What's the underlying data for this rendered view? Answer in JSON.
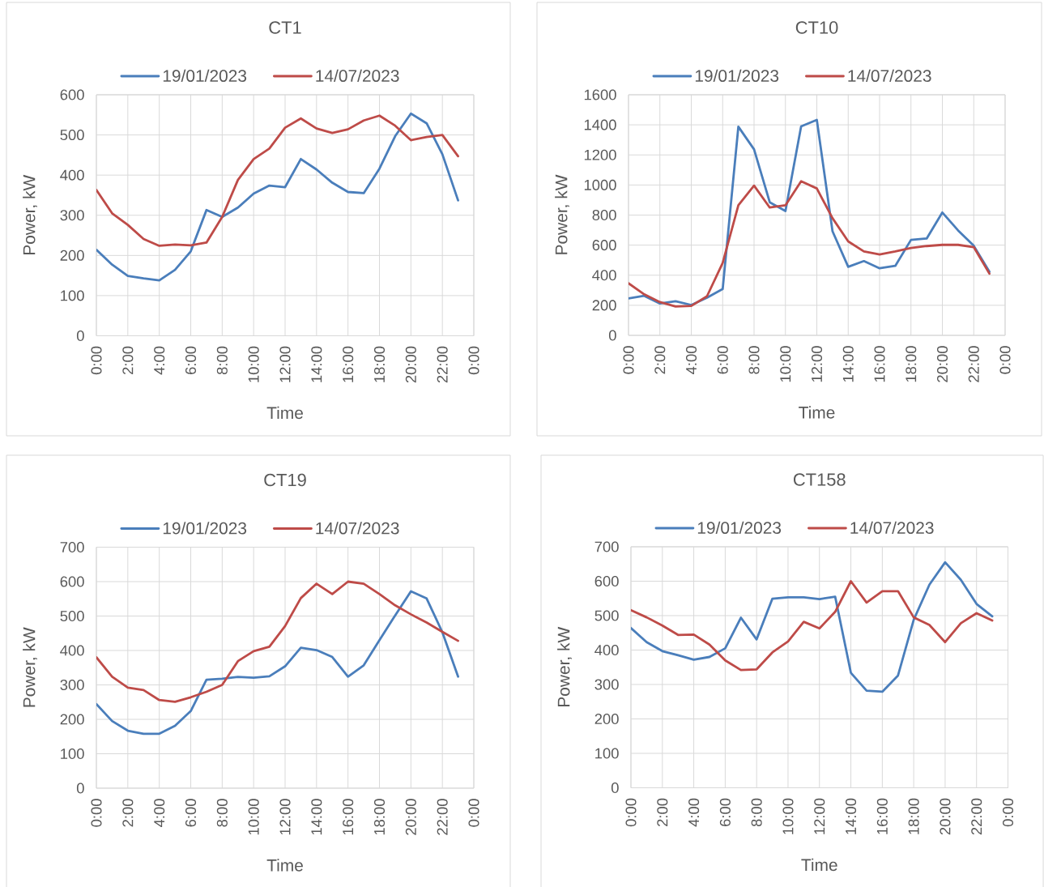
{
  "chart_data": [
    {
      "type": "line",
      "title": "CT1",
      "xlabel": "Time",
      "ylabel": "Power, kW",
      "x": [
        0,
        1,
        2,
        3,
        4,
        5,
        6,
        7,
        8,
        9,
        10,
        11,
        12,
        13,
        14,
        15,
        16,
        17,
        18,
        19,
        20,
        21,
        22,
        23
      ],
      "series": [
        {
          "name": "19/01/2023",
          "color": "#4a7ebb",
          "values": [
            214,
            177,
            149,
            143,
            138,
            164,
            210,
            313,
            296,
            319,
            354,
            374,
            370,
            440,
            414,
            381,
            358,
            355,
            416,
            497,
            553,
            529,
            452,
            337
          ]
        },
        {
          "name": "14/07/2023",
          "color": "#be4b48",
          "values": [
            363,
            305,
            276,
            241,
            224,
            227,
            225,
            232,
            296,
            388,
            440,
            466,
            518,
            541,
            516,
            505,
            514,
            536,
            548,
            523,
            487,
            495,
            500,
            447
          ]
        }
      ],
      "xlim": [
        0,
        24
      ],
      "xticks": [
        {
          "value": 0,
          "label": "0:00"
        },
        {
          "value": 2,
          "label": "2:00"
        },
        {
          "value": 4,
          "label": "4:00"
        },
        {
          "value": 6,
          "label": "6:00"
        },
        {
          "value": 8,
          "label": "8:00"
        },
        {
          "value": 10,
          "label": "10:00"
        },
        {
          "value": 12,
          "label": "12:00"
        },
        {
          "value": 14,
          "label": "14:00"
        },
        {
          "value": 16,
          "label": "16:00"
        },
        {
          "value": 18,
          "label": "18:00"
        },
        {
          "value": 20,
          "label": "20:00"
        },
        {
          "value": 22,
          "label": "22:00"
        },
        {
          "value": 24,
          "label": "0:00"
        }
      ],
      "ylim": [
        0,
        600
      ],
      "yticks": [
        0,
        100,
        200,
        300,
        400,
        500,
        600
      ],
      "grid": true,
      "legend": "top",
      "marker": "none",
      "line_style": "solid"
    },
    {
      "type": "line",
      "title": "CT10",
      "xlabel": "Time",
      "ylabel": "Power, kW",
      "x": [
        0,
        1,
        2,
        3,
        4,
        5,
        6,
        7,
        8,
        9,
        10,
        11,
        12,
        13,
        14,
        15,
        16,
        17,
        18,
        19,
        20,
        21,
        22,
        23
      ],
      "series": [
        {
          "name": "19/01/2023",
          "color": "#4a7ebb",
          "values": [
            246,
            263,
            212,
            227,
            202,
            250,
            308,
            1388,
            1237,
            885,
            827,
            1390,
            1433,
            692,
            456,
            494,
            446,
            462,
            635,
            644,
            817,
            698,
            596,
            423
          ]
        },
        {
          "name": "14/07/2023",
          "color": "#be4b48",
          "values": [
            346,
            273,
            221,
            192,
            196,
            260,
            481,
            865,
            996,
            850,
            865,
            1025,
            977,
            779,
            625,
            558,
            538,
            558,
            581,
            594,
            602,
            602,
            587,
            410
          ]
        }
      ],
      "xlim": [
        0,
        24
      ],
      "xticks": [
        {
          "value": 0,
          "label": "0:00"
        },
        {
          "value": 2,
          "label": "2:00"
        },
        {
          "value": 4,
          "label": "4:00"
        },
        {
          "value": 6,
          "label": "6:00"
        },
        {
          "value": 8,
          "label": "8:00"
        },
        {
          "value": 10,
          "label": "10:00"
        },
        {
          "value": 12,
          "label": "12:00"
        },
        {
          "value": 14,
          "label": "14:00"
        },
        {
          "value": 16,
          "label": "16:00"
        },
        {
          "value": 18,
          "label": "18:00"
        },
        {
          "value": 20,
          "label": "20:00"
        },
        {
          "value": 22,
          "label": "22:00"
        },
        {
          "value": 24,
          "label": "0:00"
        }
      ],
      "ylim": [
        0,
        1600
      ],
      "yticks": [
        0,
        200,
        400,
        600,
        800,
        1000,
        1200,
        1400,
        1600
      ],
      "grid": true,
      "legend": "top",
      "marker": "none",
      "line_style": "solid"
    },
    {
      "type": "line",
      "title": "CT19",
      "xlabel": "Time",
      "ylabel": "Power, kW",
      "x": [
        0,
        1,
        2,
        3,
        4,
        5,
        6,
        7,
        8,
        9,
        10,
        11,
        12,
        13,
        14,
        15,
        16,
        17,
        18,
        19,
        20,
        21,
        22,
        23
      ],
      "series": [
        {
          "name": "19/01/2023",
          "color": "#4a7ebb",
          "values": [
            244,
            195,
            167,
            158,
            158,
            181,
            224,
            315,
            318,
            323,
            321,
            325,
            354,
            408,
            401,
            381,
            324,
            357,
            430,
            502,
            572,
            551,
            453,
            324
          ]
        },
        {
          "name": "14/07/2023",
          "color": "#be4b48",
          "values": [
            380,
            324,
            292,
            285,
            256,
            251,
            264,
            280,
            300,
            369,
            398,
            411,
            471,
            552,
            594,
            564,
            600,
            594,
            564,
            531,
            505,
            481,
            454,
            428
          ]
        }
      ],
      "xlim": [
        0,
        24
      ],
      "xticks": [
        {
          "value": 0,
          "label": "0:00"
        },
        {
          "value": 2,
          "label": "2:00"
        },
        {
          "value": 4,
          "label": "4:00"
        },
        {
          "value": 6,
          "label": "6:00"
        },
        {
          "value": 8,
          "label": "8:00"
        },
        {
          "value": 10,
          "label": "10:00"
        },
        {
          "value": 12,
          "label": "12:00"
        },
        {
          "value": 14,
          "label": "14:00"
        },
        {
          "value": 16,
          "label": "16:00"
        },
        {
          "value": 18,
          "label": "18:00"
        },
        {
          "value": 20,
          "label": "20:00"
        },
        {
          "value": 22,
          "label": "22:00"
        },
        {
          "value": 24,
          "label": "0:00"
        }
      ],
      "ylim": [
        0,
        700
      ],
      "yticks": [
        0,
        100,
        200,
        300,
        400,
        500,
        600,
        700
      ],
      "grid": true,
      "legend": "top",
      "marker": "none",
      "line_style": "solid"
    },
    {
      "type": "line",
      "title": "CT158",
      "xlabel": "Time",
      "ylabel": "Power, kW",
      "x": [
        0,
        1,
        2,
        3,
        4,
        5,
        6,
        7,
        8,
        9,
        10,
        11,
        12,
        13,
        14,
        15,
        16,
        17,
        18,
        19,
        20,
        21,
        22,
        23
      ],
      "series": [
        {
          "name": "19/01/2023",
          "color": "#4a7ebb",
          "values": [
            464,
            423,
            397,
            385,
            372,
            380,
            405,
            494,
            431,
            549,
            553,
            553,
            548,
            555,
            334,
            282,
            279,
            326,
            488,
            590,
            655,
            604,
            534,
            498
          ]
        },
        {
          "name": "14/07/2023",
          "color": "#be4b48",
          "values": [
            516,
            495,
            471,
            444,
            445,
            416,
            370,
            342,
            344,
            393,
            425,
            482,
            463,
            511,
            600,
            538,
            571,
            571,
            495,
            473,
            423,
            478,
            507,
            486
          ]
        }
      ],
      "xlim": [
        0,
        24
      ],
      "xticks": [
        {
          "value": 0,
          "label": "0:00"
        },
        {
          "value": 2,
          "label": "2:00"
        },
        {
          "value": 4,
          "label": "4:00"
        },
        {
          "value": 6,
          "label": "6:00"
        },
        {
          "value": 8,
          "label": "8:00"
        },
        {
          "value": 10,
          "label": "10:00"
        },
        {
          "value": 12,
          "label": "12:00"
        },
        {
          "value": 14,
          "label": "14:00"
        },
        {
          "value": 16,
          "label": "16:00"
        },
        {
          "value": 18,
          "label": "18:00"
        },
        {
          "value": 20,
          "label": "20:00"
        },
        {
          "value": 22,
          "label": "22:00"
        },
        {
          "value": 24,
          "label": "0:00"
        }
      ],
      "ylim": [
        0,
        700
      ],
      "yticks": [
        0,
        100,
        200,
        300,
        400,
        500,
        600,
        700
      ],
      "grid": true,
      "legend": "top",
      "marker": "none",
      "line_style": "solid"
    }
  ]
}
